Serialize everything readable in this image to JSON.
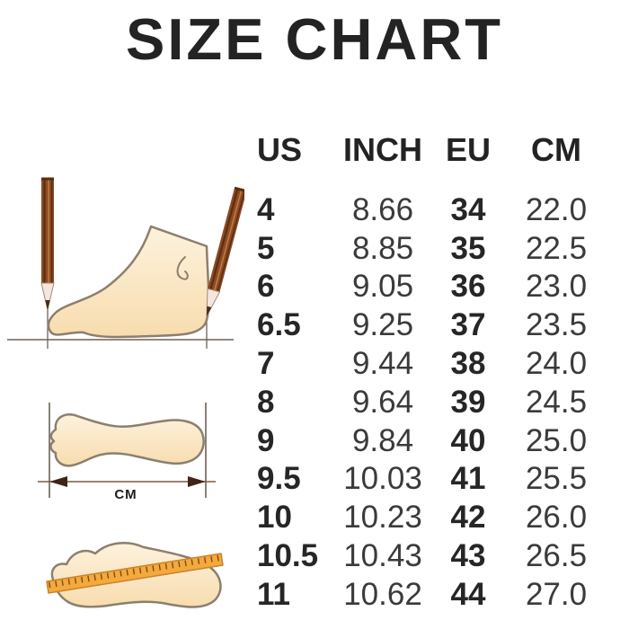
{
  "title": "SIZE CHART",
  "chart_data": {
    "type": "table",
    "title": "SIZE CHART",
    "columns": [
      "US",
      "INCH",
      "EU",
      "CM"
    ],
    "rows": [
      [
        "4",
        "8.66",
        "34",
        "22.0"
      ],
      [
        "5",
        "8.85",
        "35",
        "22.5"
      ],
      [
        "6",
        "9.05",
        "36",
        "23.0"
      ],
      [
        "6.5",
        "9.25",
        "37",
        "23.5"
      ],
      [
        "7",
        "9.44",
        "38",
        "24.0"
      ],
      [
        "8",
        "9.64",
        "39",
        "24.5"
      ],
      [
        "9",
        "9.84",
        "40",
        "25.0"
      ],
      [
        "9.5",
        "10.03",
        "41",
        "25.5"
      ],
      [
        "10",
        "10.23",
        "42",
        "26.0"
      ],
      [
        "10.5",
        "10.43",
        "43",
        "26.5"
      ],
      [
        "11",
        "10.62",
        "44",
        "27.0"
      ]
    ]
  },
  "illustrations": {
    "side_view": {
      "icon": "foot-side-with-pencils-icon",
      "description": "Side view of a foot measured between two pencils on a baseline"
    },
    "top_view": {
      "icon": "footprint-length-arrow-icon",
      "label": "CM",
      "description": "Footprint outline with double-headed arrow marking foot length"
    },
    "ruler_view": {
      "icon": "footprint-with-ruler-icon",
      "description": "Footprint outline with an orange ruler laid across it"
    }
  },
  "colors": {
    "background": "#ffffff",
    "text": "#232323",
    "value_text": "#3a3a3a",
    "foot_fill_light": "#fdf2dd",
    "foot_fill_dark": "#f8dcae",
    "foot_outline": "#8b7f6e",
    "pencil_body": "#8a4a22",
    "pencil_stripe": "#5a2c10",
    "pencil_wood": "#f5e6df",
    "ruler_orange": "#f4a93c",
    "ruler_edge": "#c9832a",
    "arrow_brown": "#3f2516",
    "guide_line": "#6b6258"
  }
}
